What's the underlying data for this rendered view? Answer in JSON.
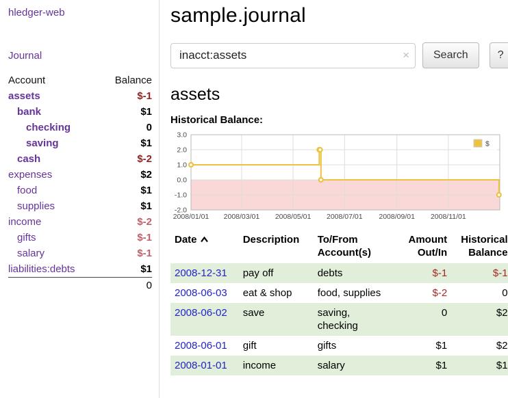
{
  "colors": {
    "link_purple": "#663399",
    "date_blue": "#2323cc",
    "negative_strong": "#96231f",
    "negative_soft": "#c2606b",
    "negative_register": "#a52a22",
    "row_green": "#e0eeda",
    "chart_line": "#edc240",
    "chart_negative_fill": "#fbd8d8"
  },
  "sidebar": {
    "app_title": "hledger-web",
    "journal_link": "Journal",
    "accounts": {
      "col_account": "Account",
      "col_balance": "Balance",
      "rows": [
        {
          "name": "assets",
          "balance": "$-1",
          "depth": 0,
          "selected": true,
          "negative": "strong"
        },
        {
          "name": "bank",
          "balance": "$1",
          "depth": 1,
          "selected": true,
          "negative": null
        },
        {
          "name": "checking",
          "balance": "0",
          "depth": 2,
          "selected": true,
          "negative": null
        },
        {
          "name": "saving",
          "balance": "$1",
          "depth": 2,
          "selected": true,
          "negative": null
        },
        {
          "name": "cash",
          "balance": "$-2",
          "depth": 1,
          "selected": true,
          "negative": "strong"
        },
        {
          "name": "expenses",
          "balance": "$2",
          "depth": 0,
          "selected": false,
          "negative": null
        },
        {
          "name": "food",
          "balance": "$1",
          "depth": 1,
          "selected": false,
          "negative": null
        },
        {
          "name": "supplies",
          "balance": "$1",
          "depth": 1,
          "selected": false,
          "negative": null
        },
        {
          "name": "income",
          "balance": "$-2",
          "depth": 0,
          "selected": false,
          "negative": "soft"
        },
        {
          "name": "gifts",
          "balance": "$-1",
          "depth": 1,
          "selected": false,
          "negative": "soft"
        },
        {
          "name": "salary",
          "balance": "$-1",
          "depth": 1,
          "selected": false,
          "negative": "soft"
        },
        {
          "name": "liabilities:debts",
          "balance": "$1",
          "depth": 0,
          "selected": false,
          "negative": null
        }
      ],
      "total": "0"
    }
  },
  "header": {
    "title": "sample.journal"
  },
  "search": {
    "value": "inacct:assets",
    "clear_icon": "×",
    "search_button": "Search",
    "help_button": "?"
  },
  "main": {
    "account_heading": "assets",
    "chart_title": "Historical Balance:"
  },
  "chart_data": {
    "type": "line",
    "title": "Historical Balance",
    "step": true,
    "grid": true,
    "legend_position": "top-right",
    "x_domain": [
      "2008-01-01",
      "2009-01-01"
    ],
    "ylim": [
      -2,
      3
    ],
    "y_ticks": [
      "3.0",
      "2.0",
      "1.0",
      "0.0",
      "-1.0",
      "-2.0"
    ],
    "x_ticks": [
      "2008/01/01",
      "2008/03/01",
      "2008/05/01",
      "2008/07/01",
      "2008/09/01",
      "2008/11/01"
    ],
    "series": [
      {
        "name": "$",
        "points": [
          [
            "2008-01-01",
            1
          ],
          [
            "2008-06-01",
            2
          ],
          [
            "2008-06-02",
            2
          ],
          [
            "2008-06-03",
            0
          ],
          [
            "2008-12-31",
            -1
          ]
        ]
      }
    ]
  },
  "register": {
    "headers": {
      "date": "Date",
      "description": "Description",
      "account": "To/From\nAccount(s)",
      "amount": "Amount\nOut/In",
      "balance": "Historical\nBalance"
    },
    "rows": [
      {
        "date": "2008-12-31",
        "description": "pay off",
        "account": "debts",
        "amount": "$-1",
        "amount_negative": true,
        "balance": "$-1",
        "balance_negative": true
      },
      {
        "date": "2008-06-03",
        "description": "eat & shop",
        "account": "food, supplies",
        "amount": "$-2",
        "amount_negative": true,
        "balance": "0",
        "balance_negative": false
      },
      {
        "date": "2008-06-02",
        "description": "save",
        "account": "saving,\nchecking",
        "amount": "0",
        "amount_negative": false,
        "balance": "$2",
        "balance_negative": false
      },
      {
        "date": "2008-06-01",
        "description": "gift",
        "account": "gifts",
        "amount": "$1",
        "amount_negative": false,
        "balance": "$2",
        "balance_negative": false
      },
      {
        "date": "2008-01-01",
        "description": "income",
        "account": "salary",
        "amount": "$1",
        "amount_negative": false,
        "balance": "$1",
        "balance_negative": false
      }
    ]
  }
}
